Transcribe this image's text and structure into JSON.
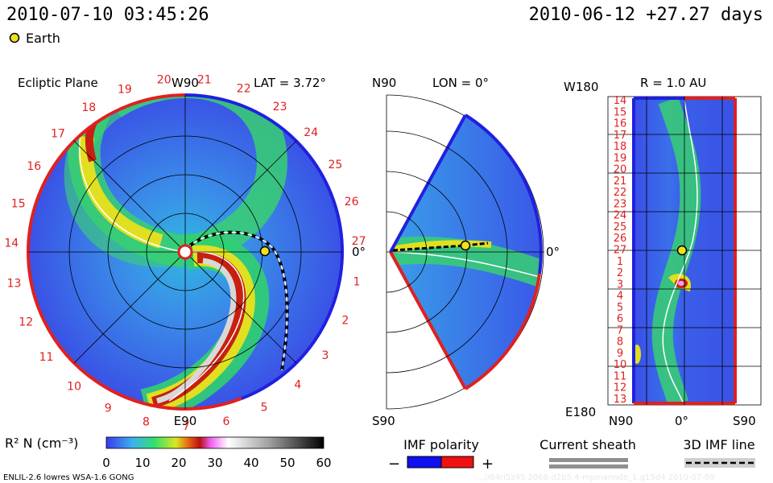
{
  "header": {
    "datetime": "2010-07-10 03:45:26",
    "run_info": "2010-06-12 +27.27 days",
    "legend_earth": "Earth"
  },
  "panels": {
    "ecliptic": {
      "title": "Ecliptic Plane",
      "lat_label": "LAT = 3.72°",
      "top_label": "W90",
      "bottom_label": "E90",
      "right_label": "0°",
      "carrington_ticks": [
        "20",
        "21",
        "22",
        "23",
        "24",
        "25",
        "26",
        "27",
        "1",
        "2",
        "3",
        "4",
        "5",
        "6",
        "7",
        "8",
        "9",
        "10",
        "11",
        "12",
        "13",
        "14",
        "15",
        "16",
        "17",
        "18",
        "19"
      ]
    },
    "meridional": {
      "north_label": "N90",
      "south_label": "S90",
      "lon_label": "LON = 0°",
      "right_label": "0°"
    },
    "radial": {
      "title": "R = 1.0 AU",
      "top_left_label": "W180",
      "bottom_left_label": "E180",
      "bottom_labels": [
        "N90",
        "0°",
        "S90"
      ],
      "ticks": [
        "14",
        "15",
        "16",
        "17",
        "18",
        "19",
        "20",
        "21",
        "22",
        "23",
        "24",
        "25",
        "26",
        "27",
        "1",
        "2",
        "3",
        "4",
        "5",
        "6",
        "7",
        "8",
        "9",
        "10",
        "11",
        "12",
        "13"
      ]
    }
  },
  "colorbar": {
    "label": "R² N (cm⁻³)",
    "ticks": [
      "0",
      "10",
      "20",
      "30",
      "40",
      "50",
      "60"
    ],
    "stops": [
      "#3a3af0",
      "#3cb0f0",
      "#30e070",
      "#d8e820",
      "#e86010",
      "#b81010",
      "#f060f0",
      "#ffffff",
      "#a0a0a0",
      "#000000"
    ]
  },
  "legends": {
    "imf_title": "IMF polarity",
    "imf_minus": "−",
    "imf_plus": "+",
    "imf_colors": [
      "#1010f0",
      "#f01010"
    ],
    "sheath_title": "Current sheath",
    "imf3d_title": "3D IMF line"
  },
  "footer": {
    "model": "ENLIL-2.6 lowres WSA-1.6 GONG",
    "runid": "...//64rl5z45.2068-d2b5.4-mpmannde_1.g15d4     2010-07-09"
  },
  "chart_data": {
    "type": "heatmap",
    "title": "",
    "quantity": "R² N (cm⁻³)",
    "range": [
      0,
      60
    ],
    "colorscale_ticks": [
      0,
      10,
      20,
      30,
      40,
      50,
      60
    ],
    "time": "2010-07-10 03:45:26",
    "panels": [
      "Ecliptic Plane",
      "LON = 0°",
      "R = 1.0 AU"
    ]
  }
}
